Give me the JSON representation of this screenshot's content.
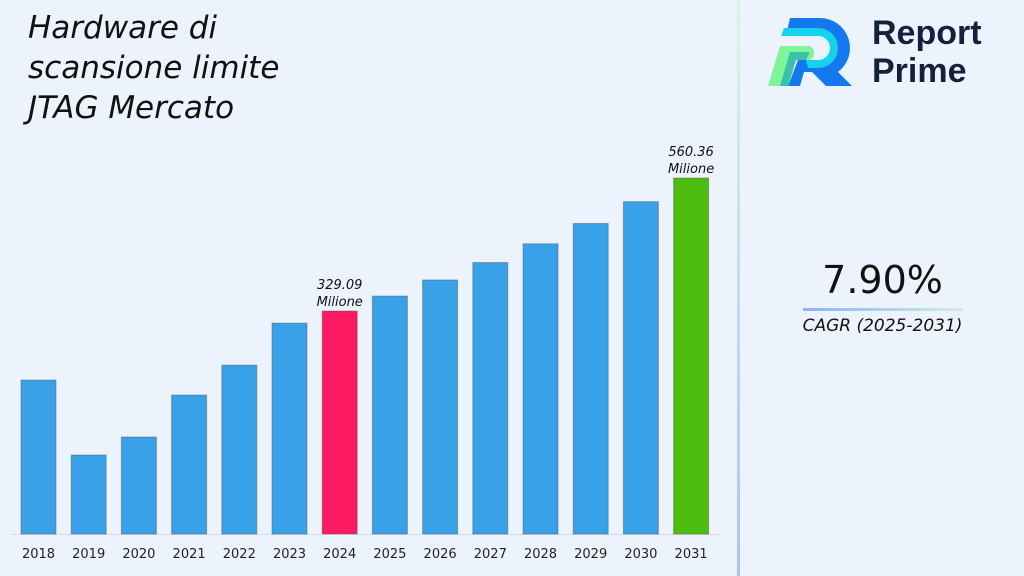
{
  "title": "Hardware di scansione limite JTAG Mercato",
  "logo": {
    "line1": "Report",
    "line2": "Prime"
  },
  "cagr": {
    "value": "7.90%",
    "label": "CAGR (2025-2031)"
  },
  "chart_data": {
    "type": "bar",
    "title": "Hardware di scansione limite JTAG Mercato",
    "categories": [
      "2018",
      "2019",
      "2020",
      "2021",
      "2022",
      "2023",
      "2024",
      "2025",
      "2026",
      "2027",
      "2028",
      "2029",
      "2030",
      "2031"
    ],
    "values": [
      209.1,
      78.7,
      110.0,
      183.0,
      235.0,
      308.0,
      329.09,
      355.1,
      383.1,
      413.4,
      446.0,
      481.3,
      519.3,
      560.36
    ],
    "colors": [
      "#38a1e8",
      "#38a1e8",
      "#38a1e8",
      "#38a1e8",
      "#38a1e8",
      "#38a1e8",
      "#fd1a63",
      "#38a1e8",
      "#38a1e8",
      "#38a1e8",
      "#38a1e8",
      "#38a1e8",
      "#38a1e8",
      "#4cbd0e"
    ],
    "data_labels": [
      {
        "category": "2024",
        "value": "329.09",
        "unit": "Milione"
      },
      {
        "category": "2031",
        "value": "560.36",
        "unit": "Milione"
      }
    ],
    "xlabel": "",
    "ylabel": "",
    "grid": false,
    "legend": "none"
  }
}
